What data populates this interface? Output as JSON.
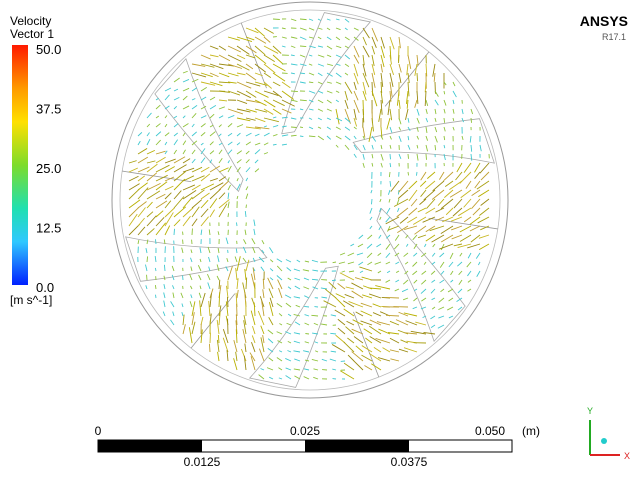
{
  "legend": {
    "title": "Velocity",
    "subtitle": "Vector 1",
    "ticks": [
      "50.0",
      "37.5",
      "25.0",
      "12.5",
      "0.0"
    ],
    "unit": "[m s^-1]"
  },
  "brand": {
    "name": "ANSYS",
    "version": "R17.1"
  },
  "scale_bar": {
    "top_labels": [
      "0",
      "0.025",
      "0.050"
    ],
    "unit": "(m)",
    "bottom_labels": [
      "0.0125",
      "0.0375"
    ]
  },
  "triad": {
    "y": "Y",
    "x": "X"
  }
}
